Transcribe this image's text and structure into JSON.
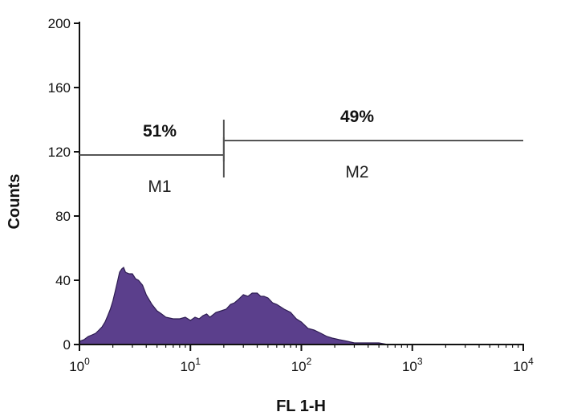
{
  "chart_data": {
    "type": "area",
    "xlabel": "FL 1-H",
    "ylabel": "Counts",
    "x_scale": "log",
    "xlim": [
      1,
      10000
    ],
    "ylim": [
      0,
      200
    ],
    "x_ticks": [
      {
        "value": 1,
        "base": "10",
        "exp": "0"
      },
      {
        "value": 10,
        "base": "10",
        "exp": "1"
      },
      {
        "value": 100,
        "base": "10",
        "exp": "2"
      },
      {
        "value": 1000,
        "base": "10",
        "exp": "3"
      },
      {
        "value": 10000,
        "base": "10",
        "exp": "4"
      }
    ],
    "y_ticks": [
      "0",
      "40",
      "80",
      "120",
      "160",
      "200"
    ],
    "y_tick_values": [
      0,
      40,
      80,
      120,
      160,
      200
    ],
    "grid": false,
    "legend": "none",
    "fill_color": "#5b3f8c",
    "series": [
      {
        "x": [
          1,
          1.1,
          1.2,
          1.3,
          1.4,
          1.5,
          1.6,
          1.7,
          1.8,
          1.9,
          2.0,
          2.1,
          2.2,
          2.3,
          2.4,
          2.5,
          2.6,
          2.8,
          3.0,
          3.2,
          3.4,
          3.7,
          4.0,
          4.5,
          5.0,
          5.5,
          6.0,
          7.0,
          8.0,
          9.0,
          10,
          11,
          12,
          13,
          14,
          15,
          17,
          19,
          21,
          23,
          25,
          27,
          30,
          33,
          36,
          40,
          43,
          46,
          50,
          55,
          60,
          70,
          80,
          90,
          100,
          115,
          130,
          150,
          170,
          190,
          220,
          260,
          300,
          400,
          500,
          600,
          800,
          1000
        ],
        "y": [
          2,
          3,
          5,
          6,
          7,
          9,
          11,
          14,
          18,
          22,
          27,
          33,
          39,
          45,
          47,
          48,
          45,
          44,
          44,
          41,
          40,
          37,
          31,
          25,
          21,
          19,
          17,
          16,
          16,
          17,
          15,
          17,
          16,
          18,
          19,
          17,
          20,
          21,
          22,
          25,
          26,
          28,
          31,
          30,
          32,
          32,
          30,
          30,
          29,
          26,
          25,
          22,
          20,
          16,
          14,
          10,
          9,
          7,
          5,
          4,
          3,
          2,
          1,
          1,
          1,
          0,
          0,
          0
        ]
      }
    ],
    "markers": [
      {
        "label": "M1",
        "x_start": 1,
        "x_end": 20,
        "y": 118,
        "percent": "51%"
      },
      {
        "label": "M2",
        "x_start": 20,
        "x_end": 10000,
        "y": 127,
        "percent": "49%"
      }
    ]
  }
}
